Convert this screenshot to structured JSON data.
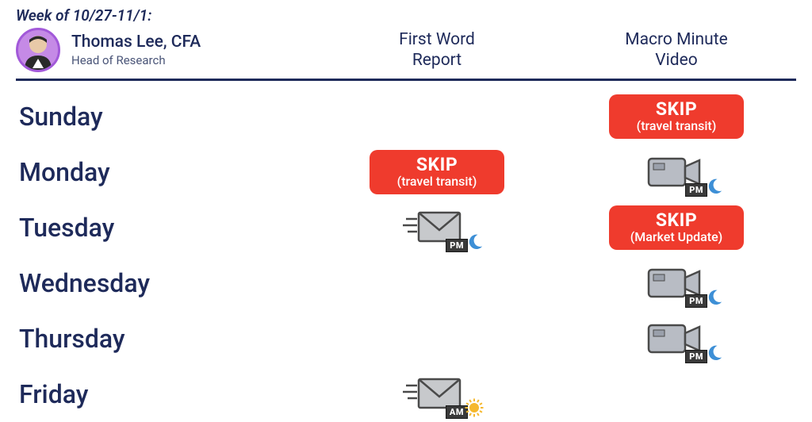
{
  "header": {
    "week_label": "Week of 10/27-11/1:",
    "author_name": "Thomas Lee, CFA",
    "author_title": "Head of Research",
    "columns": {
      "first_word": "First Word\nReport",
      "macro_minute": "Macro Minute\nVideo"
    }
  },
  "colors": {
    "text_primary": "#1e2a5a",
    "skip_bg": "#ef3b2d",
    "skip_text": "#ffffff",
    "avatar_ring": "#a259d9",
    "avatar_bg": "#c58ae6",
    "envelope_fill": "#c7c9cc",
    "envelope_stroke": "#4a4a4a",
    "camera_fill": "#b8bcc4",
    "camera_stroke": "#4a4a4a",
    "moon": "#3d8fd6",
    "sun": "#f5b82e",
    "tag_bg": "#3a3a3a"
  },
  "days": [
    {
      "name": "Sunday",
      "first_word": {
        "type": "empty"
      },
      "macro_minute": {
        "type": "skip",
        "label": "SKIP",
        "reason": "(travel transit)"
      }
    },
    {
      "name": "Monday",
      "first_word": {
        "type": "skip",
        "label": "SKIP",
        "reason": "(travel transit)"
      },
      "macro_minute": {
        "type": "video",
        "time": "PM"
      }
    },
    {
      "name": "Tuesday",
      "first_word": {
        "type": "mail",
        "time": "PM"
      },
      "macro_minute": {
        "type": "skip",
        "label": "SKIP",
        "reason": "(Market Update)"
      }
    },
    {
      "name": "Wednesday",
      "first_word": {
        "type": "empty"
      },
      "macro_minute": {
        "type": "video",
        "time": "PM"
      }
    },
    {
      "name": "Thursday",
      "first_word": {
        "type": "empty"
      },
      "macro_minute": {
        "type": "video",
        "time": "PM"
      }
    },
    {
      "name": "Friday",
      "first_word": {
        "type": "mail",
        "time": "AM"
      },
      "macro_minute": {
        "type": "empty"
      }
    }
  ]
}
